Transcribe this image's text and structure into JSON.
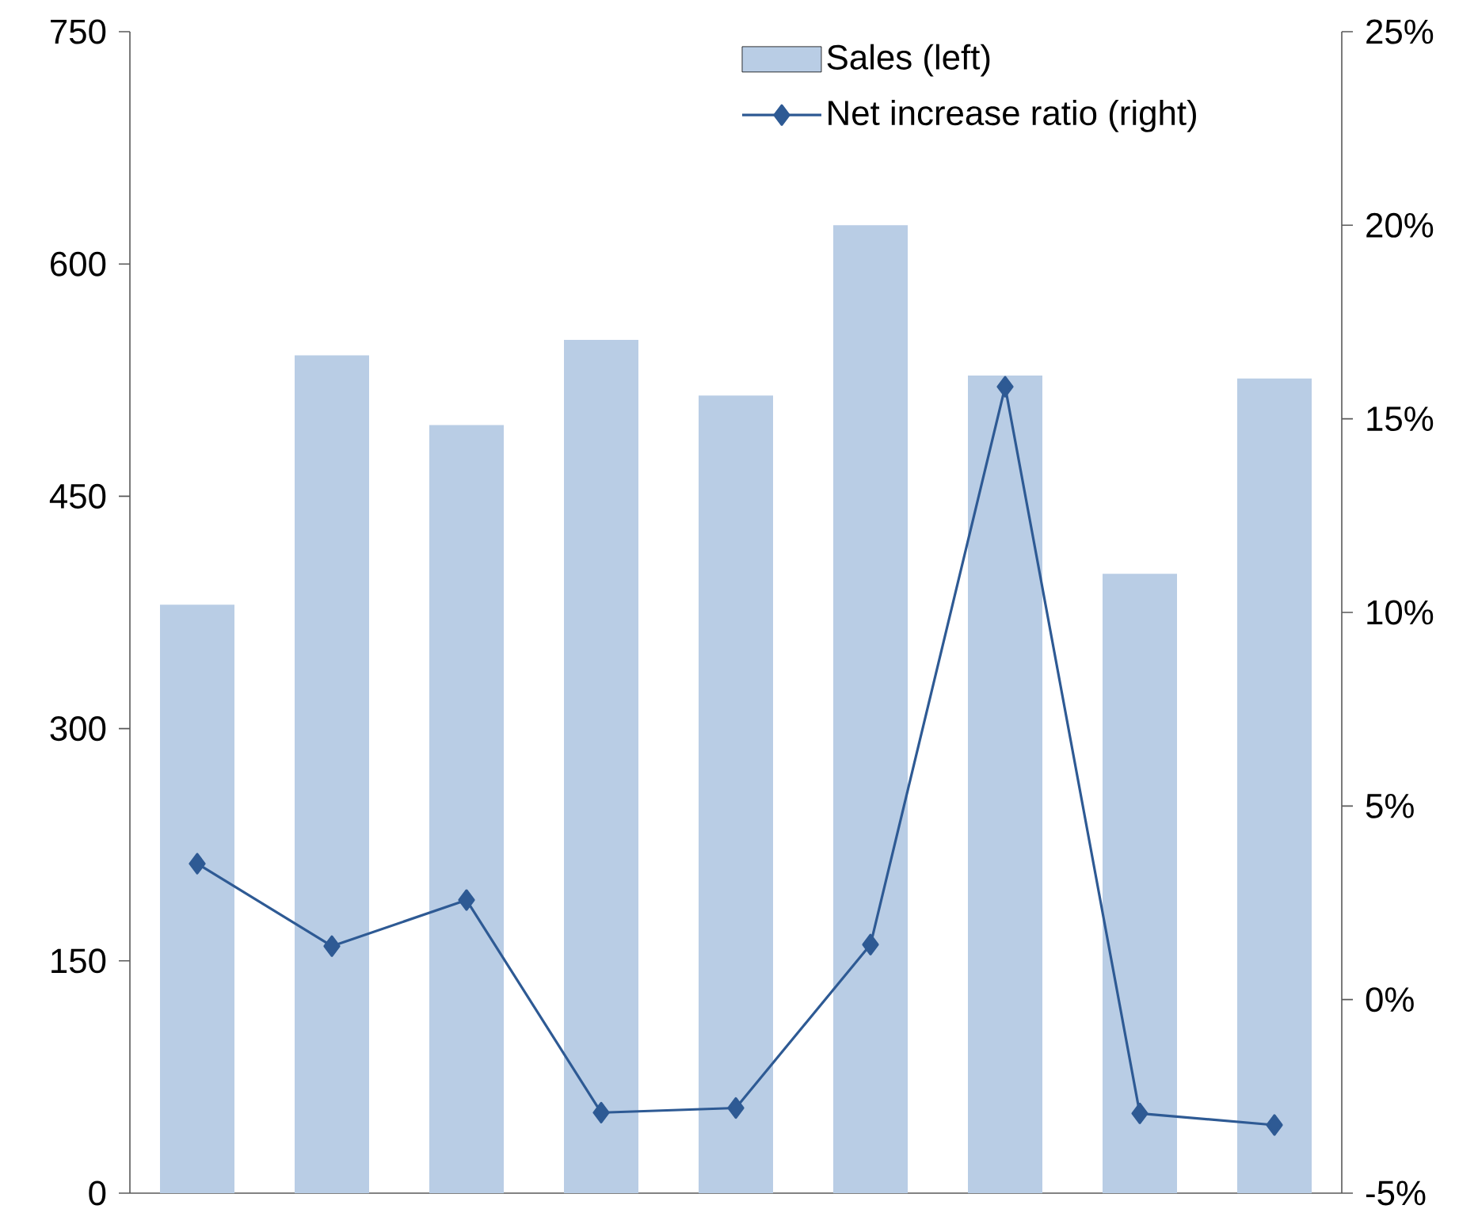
{
  "chart_data": {
    "type": "bar",
    "categories": [
      null,
      null,
      null,
      null,
      null,
      null,
      null,
      null,
      null
    ],
    "series": [
      {
        "name": "Sales (left)",
        "color": "#b9cde5",
        "values": [
          380,
          541,
          496,
          551,
          515,
          625,
          528,
          400,
          526
        ]
      },
      {
        "name": "Net increase ratio (right)",
        "type": "line",
        "axis": "y2",
        "color": "#2e5a94",
        "marker": "diamond",
        "values": [
          3.51,
          1.38,
          2.57,
          -2.92,
          -2.8,
          1.42,
          15.83,
          -2.94,
          -3.24
        ]
      }
    ],
    "ylim": [
      0,
      750
    ],
    "yticks": [
      0,
      150,
      300,
      450,
      600,
      750
    ],
    "y2lim": [
      -5,
      25
    ],
    "y2ticks": [
      {
        "value": -5,
        "label": "-5%"
      },
      {
        "value": 0,
        "label": "0%"
      },
      {
        "value": 5,
        "label": "5%"
      },
      {
        "value": 10,
        "label": "10%"
      },
      {
        "value": 15,
        "label": "15%"
      },
      {
        "value": 20,
        "label": "20%"
      },
      {
        "value": 25,
        "label": "25%"
      }
    ],
    "legend": "top right",
    "grid": false
  }
}
